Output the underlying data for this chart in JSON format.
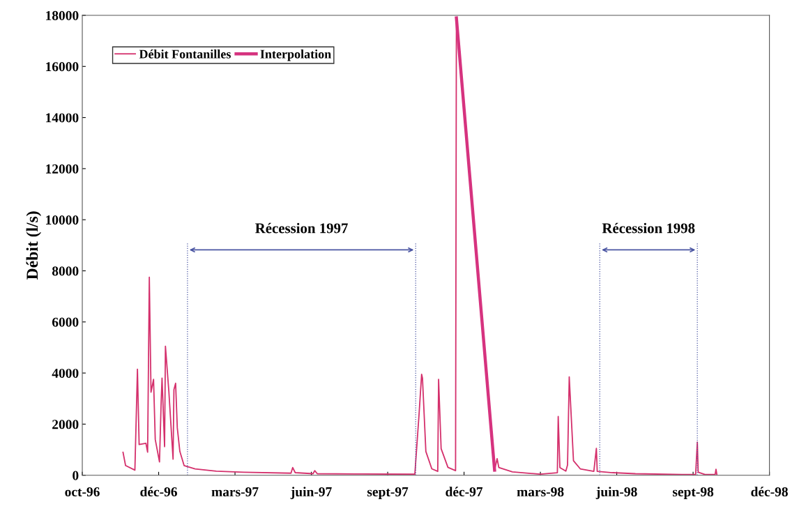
{
  "chart_data": {
    "type": "line",
    "ylabel": "Débit (l/s)",
    "legend": "top left",
    "grid": false,
    "ylim": [
      0,
      18000
    ],
    "yticks": [
      0,
      2000,
      4000,
      6000,
      8000,
      10000,
      12000,
      14000,
      16000,
      18000
    ],
    "xlim": [
      "1996-10-01",
      "1998-12-20"
    ],
    "xticks": [
      {
        "value": "1996-10-01",
        "label": "oct-96"
      },
      {
        "value": "1996-12-30",
        "label": "déc-96"
      },
      {
        "value": "1997-03-30",
        "label": "mars-97"
      },
      {
        "value": "1997-06-28",
        "label": "juin-97"
      },
      {
        "value": "1997-09-26",
        "label": "sept-97"
      },
      {
        "value": "1997-12-25",
        "label": "déc-97"
      },
      {
        "value": "1998-03-25",
        "label": "mars-98"
      },
      {
        "value": "1998-06-23",
        "label": "juin-98"
      },
      {
        "value": "1998-09-21",
        "label": "sept-98"
      },
      {
        "value": "1998-12-20",
        "label": "déc-98"
      }
    ],
    "ref_lines": [
      {
        "axis": "x",
        "value": "1997-02-02",
        "color": "#4a55a2",
        "line_style": "dotted"
      },
      {
        "axis": "x",
        "value": "1997-10-29",
        "color": "#4a55a2",
        "line_style": "dotted"
      },
      {
        "axis": "x",
        "value": "1998-06-03",
        "color": "#4a55a2",
        "line_style": "dotted"
      },
      {
        "axis": "x",
        "value": "1998-09-26",
        "color": "#4a55a2",
        "line_style": "dotted"
      }
    ],
    "annotations": [
      "Récession 1997",
      "Récession 1998"
    ],
    "series": [
      {
        "name": "Débit Fontanilles",
        "color": "#d4306c",
        "line_style": "solid",
        "x": [
          "1996-11-18",
          "1996-11-21",
          "1996-12-02",
          "1996-12-05",
          "1996-12-07",
          "1996-12-15",
          "1996-12-17",
          "1996-12-19",
          "1996-12-21",
          "1996-12-24",
          "1996-12-26",
          "1996-12-31",
          "1997-01-02",
          "1997-01-03",
          "1997-01-06",
          "1997-01-07",
          "1997-01-11",
          "1997-01-16",
          "1997-01-17",
          "1997-01-19",
          "1997-01-21",
          "1997-01-24",
          "1997-01-29",
          "1997-02-11",
          "1997-03-08",
          "1997-04-09",
          "1997-06-04",
          "1997-06-06",
          "1997-06-09",
          "1997-06-30",
          "1997-07-02",
          "1997-07-05",
          "1997-08-27",
          "1997-10-28",
          "1997-11-02",
          "1997-11-05",
          "1997-11-06",
          "1997-11-10",
          "1997-11-17",
          "1997-11-24",
          "1997-11-25",
          "1997-11-28",
          "1997-12-06",
          "1997-12-15",
          "1997-12-16",
          "1997-12-17",
          "1998-01-30",
          "1998-02-02",
          "1998-02-04",
          "1998-02-20",
          "1998-03-25",
          "1998-04-14",
          "1998-04-15",
          "1998-04-17",
          "1998-04-24",
          "1998-04-26",
          "1998-04-28",
          "1998-05-03",
          "1998-05-11",
          "1998-05-27",
          "1998-05-30",
          "1998-05-31",
          "1998-06-18",
          "1998-07-15",
          "1998-09-08",
          "1998-09-24",
          "1998-09-26",
          "1998-09-27",
          "1998-10-05",
          "1998-10-17",
          "1998-10-18",
          "1998-10-19"
        ],
        "values": [
          900,
          380,
          200,
          4150,
          1200,
          1250,
          900,
          7750,
          3250,
          3750,
          1400,
          520,
          2900,
          3800,
          1120,
          5050,
          3300,
          630,
          3350,
          3600,
          1850,
          930,
          380,
          250,
          160,
          120,
          80,
          300,
          100,
          60,
          180,
          60,
          50,
          40,
          2400,
          3950,
          3800,
          930,
          250,
          150,
          3750,
          1040,
          310,
          180,
          17900,
          null,
          200,
          650,
          300,
          130,
          40,
          100,
          2300,
          300,
          160,
          400,
          3850,
          570,
          250,
          150,
          1050,
          150,
          100,
          60,
          30,
          30,
          1300,
          120,
          30,
          30,
          230,
          30
        ]
      },
      {
        "name": "Interpolation",
        "color": "#d6337f",
        "line_style": "solid",
        "x": [
          "1997-12-16",
          "1998-01-30"
        ],
        "values": [
          17900,
          200
        ]
      }
    ]
  }
}
